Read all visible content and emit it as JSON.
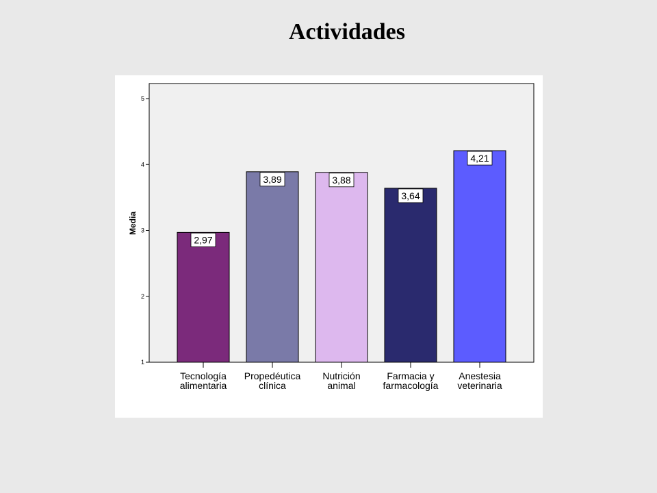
{
  "chart_data": {
    "type": "bar",
    "title": "Actividades",
    "ylabel": "Media",
    "xlabel": "",
    "ylim": [
      1,
      5
    ],
    "yticks": [
      "1",
      "2",
      "3",
      "4",
      "5"
    ],
    "grid": false,
    "categories": [
      [
        "Tecnología",
        "alimentaria"
      ],
      [
        "Propedéutica",
        "clínica"
      ],
      [
        "Nutrición",
        "animal"
      ],
      [
        "Farmacia y",
        "farmacología"
      ],
      [
        "Anestesia",
        "veterinaria"
      ]
    ],
    "values": [
      2.97,
      3.89,
      3.88,
      3.64,
      4.21
    ],
    "value_labels": [
      "2,97",
      "3,89",
      "3,88",
      "3,64",
      "4,21"
    ],
    "colors": [
      "#7b2a7b",
      "#7a7aa8",
      "#ddb8ee",
      "#2a2a6e",
      "#5c5cff"
    ],
    "plot_background": "#f0f0f0"
  }
}
